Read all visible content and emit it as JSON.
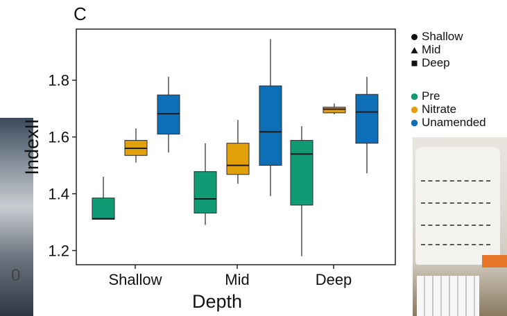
{
  "panel_label": "C",
  "background_stray_text": "0",
  "chart_data": {
    "type": "box",
    "title": "",
    "xlabel": "Depth",
    "ylabel": "IndexII",
    "categories": [
      "Shallow",
      "Mid",
      "Deep"
    ],
    "ylim": [
      1.15,
      1.98
    ],
    "yticks": [
      "1.2",
      "1.4",
      "1.6",
      "1.8"
    ],
    "grid": false,
    "series": [
      {
        "name": "Pre",
        "color": "#119b74",
        "boxes": [
          {
            "category": "Shallow",
            "min": 1.31,
            "q1": 1.31,
            "median": 1.312,
            "q3": 1.385,
            "max": 1.46
          },
          {
            "category": "Mid",
            "min": 1.29,
            "q1": 1.332,
            "median": 1.382,
            "q3": 1.478,
            "max": 1.578
          },
          {
            "category": "Deep",
            "min": 1.18,
            "q1": 1.36,
            "median": 1.54,
            "q3": 1.588,
            "max": 1.638
          }
        ]
      },
      {
        "name": "Nitrate",
        "color": "#e2a10b",
        "boxes": [
          {
            "category": "Shallow",
            "min": 1.51,
            "q1": 1.535,
            "median": 1.56,
            "q3": 1.588,
            "max": 1.63
          },
          {
            "category": "Mid",
            "min": 1.435,
            "q1": 1.468,
            "median": 1.5,
            "q3": 1.578,
            "max": 1.66
          },
          {
            "category": "Deep",
            "min": 1.68,
            "q1": 1.685,
            "median": 1.698,
            "q3": 1.705,
            "max": 1.718
          }
        ]
      },
      {
        "name": "Unamended",
        "color": "#0d6fb6",
        "boxes": [
          {
            "category": "Shallow",
            "min": 1.545,
            "q1": 1.61,
            "median": 1.682,
            "q3": 1.748,
            "max": 1.812
          },
          {
            "category": "Mid",
            "min": 1.392,
            "q1": 1.5,
            "median": 1.618,
            "q3": 1.78,
            "max": 1.945
          },
          {
            "category": "Deep",
            "min": 1.472,
            "q1": 1.578,
            "median": 1.688,
            "q3": 1.75,
            "max": 1.812
          }
        ]
      }
    ],
    "legend": {
      "placement": "right",
      "depth_title_items": [
        {
          "label": "Shallow",
          "shape": "circle"
        },
        {
          "label": "Mid",
          "shape": "triangle"
        },
        {
          "label": "Deep",
          "shape": "square"
        }
      ],
      "treatment_items": [
        {
          "label": "Pre",
          "color": "#119b74"
        },
        {
          "label": "Nitrate",
          "color": "#e2a10b"
        },
        {
          "label": "Unamended",
          "color": "#0d6fb6"
        }
      ]
    }
  }
}
